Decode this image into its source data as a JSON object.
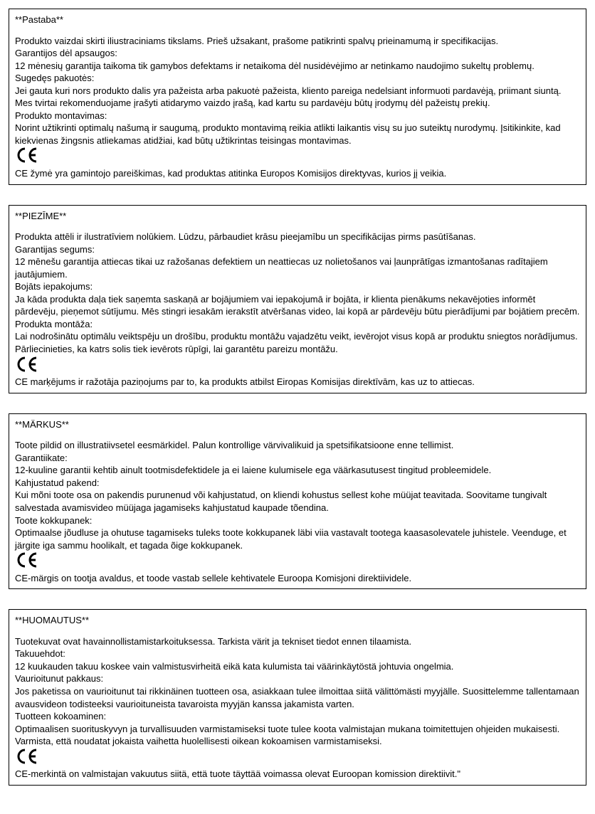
{
  "notices": [
    {
      "title": "**Pastaba**",
      "paragraphs": [
        "Produkto vaizdai skirti iliustraciniams tikslams. Prieš užsakant, prašome patikrinti spalvų prieinamumą ir specifikacijas.",
        "Garantijos dėl apsaugos:",
        "12 mėnesių garantija taikoma tik gamybos defektams ir netaikoma dėl nusidėvėjimo ar netinkamo naudojimo sukeltų problemų.",
        "Sugedęs pakuotės:",
        "Jei gauta kuri nors produkto dalis yra pažeista arba pakuotė pažeista, kliento pareiga nedelsiant informuoti pardavėją, priimant siuntą. Mes tvirtai rekomenduojame įrašyti atidarymo vaizdo įrašą, kad kartu su pardavėju būtų įrodymų dėl pažeistų prekių.",
        "Produkto montavimas:",
        "Norint užtikrinti optimalų našumą ir saugumą, produkto montavimą reikia atlikti laikantis visų su juo suteiktų nurodymų. Įsitikinkite, kad kiekvienas žingsnis atliekamas atidžiai, kad būtų užtikrintas teisingas montavimas."
      ],
      "ce_text": "CE žymė yra gamintojo pareiškimas, kad produktas atitinka Europos Komisijos direktyvas, kurios jį veikia."
    },
    {
      "title": "**PIEZĪME**",
      "paragraphs": [
        "Produkta attēli ir ilustratīviem nolūkiem. Lūdzu, pārbaudiet krāsu pieejamību un specifikācijas pirms pasūtīšanas.",
        "Garantijas segums:",
        "12 mēnešu garantija attiecas tikai uz ražošanas defektiem un neattiecas uz nolietošanos vai ļaunprātīgas izmantošanas radītajiem jautājumiem.",
        "Bojāts iepakojums:",
        "Ja kāda produkta daļa tiek saņemta saskaņā ar bojājumiem vai iepakojumā ir bojāta, ir klienta pienākums nekavējoties informēt pārdevēju, pieņemot sūtījumu. Mēs stingri iesakām ierakstīt atvēršanas video, lai kopā ar pārdevēju būtu pierādījumi par bojātiem precēm.",
        "Produkta montāža:",
        "Lai nodrošinātu optimālu veiktspēju un drošību, produktu montāžu vajadzētu veikt, ievērojot visus kopā ar produktu sniegtos norādījumus. Pārliecinieties, ka katrs solis tiek ievērots rūpīgi, lai garantētu pareizu montāžu."
      ],
      "ce_text": "CE marķējums ir ražotāja paziņojums par to, ka produkts atbilst Eiropas Komisijas direktīvām, kas uz to attiecas."
    },
    {
      "title": "**MÄRKUS**",
      "paragraphs": [
        "Toote pildid on illustratiivsetel eesmärkidel. Palun kontrollige värvivalikuid ja spetsifikatsioone enne tellimist.",
        "Garantiikate:",
        "12-kuuline garantii kehtib ainult tootmisdefektidele ja ei laiene kulumisele ega väärkasutusest tingitud probleemidele.",
        "Kahjustatud pakend:",
        "Kui mõni toote osa on pakendis purunenud või kahjustatud, on kliendi kohustus sellest kohe müüjat teavitada. Soovitame tungivalt salvestada avamisvideo müüjaga jagamiseks kahjustatud kaupade tõendina.",
        "Toote kokkupanek:",
        "Optimaalse jõudluse ja ohutuse tagamiseks tuleks toote kokkupanek läbi viia vastavalt tootega kaasasolevatele juhistele. Veenduge, et järgite iga sammu hoolikalt, et tagada õige kokkupanek."
      ],
      "ce_text": "CE-märgis on tootja avaldus, et toode vastab sellele kehtivatele Euroopa Komisjoni direktiividele."
    },
    {
      "title": "**HUOMAUTUS**",
      "paragraphs": [
        "Tuotekuvat ovat havainnollistamistarkoituksessa. Tarkista värit ja tekniset tiedot ennen tilaamista.",
        "Takuuehdot:",
        "12 kuukauden takuu koskee vain valmistusvirheitä eikä kata kulumista tai väärinkäytöstä johtuvia ongelmia.",
        "Vaurioitunut pakkaus:",
        "Jos paketissa on vaurioitunut tai rikkinäinen tuotteen osa, asiakkaan tulee ilmoittaa siitä välittömästi myyjälle. Suosittelemme tallentamaan avausvideon todisteeksi vaurioituneista tavaroista myyjän kanssa jakamista varten.",
        "Tuotteen kokoaminen:",
        "Optimaalisen suorituskyvyn ja turvallisuuden varmistamiseksi tuote tulee koota valmistajan mukana toimitettujen ohjeiden mukaisesti. Varmista, että noudatat jokaista vaihetta huolellisesti oikean kokoamisen varmistamiseksi."
      ],
      "ce_text": "CE-merkintä on valmistajan vakuutus siitä, että tuote täyttää voimassa olevat Euroopan komission direktiivit.\""
    }
  ],
  "ce_icon_name": "ce-mark-icon",
  "colors": {
    "border": "#000000",
    "text": "#000000",
    "background": "#ffffff"
  }
}
